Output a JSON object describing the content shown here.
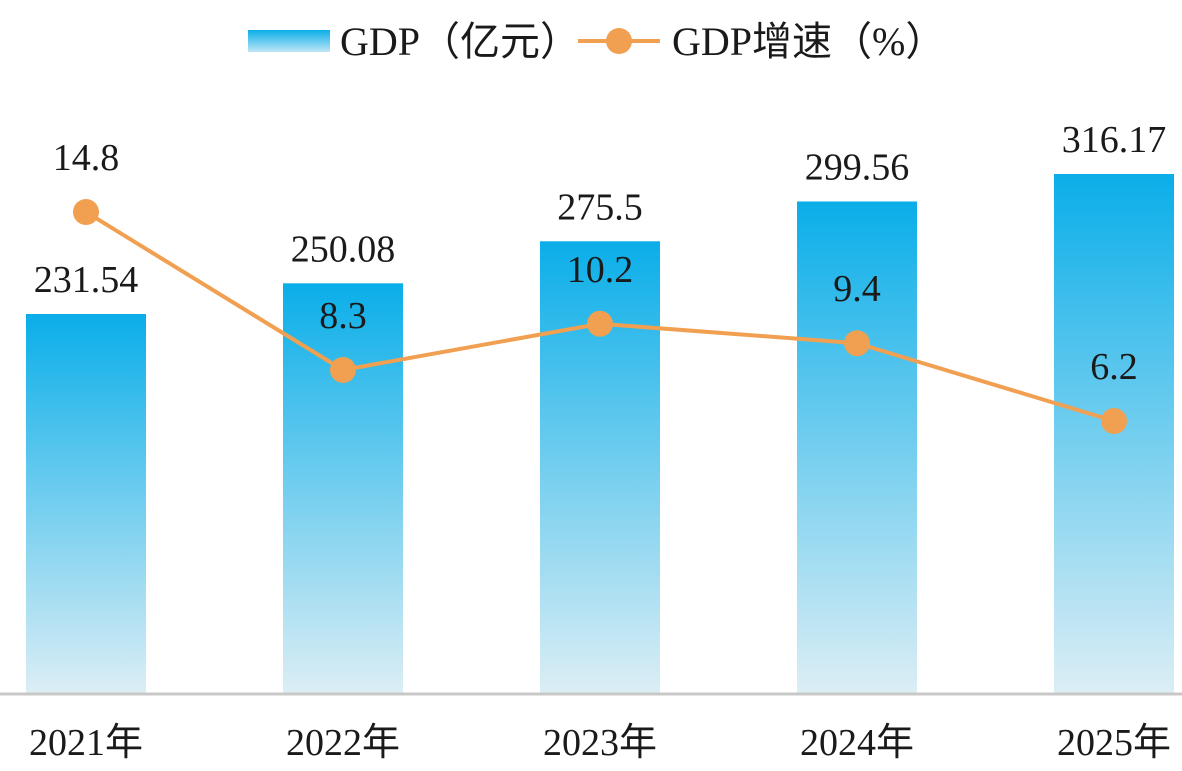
{
  "chart_data": {
    "type": "bar",
    "categories": [
      "2021年",
      "2022年",
      "2023年",
      "2024年",
      "2025年"
    ],
    "series": [
      {
        "name": "GDP（亿元）",
        "type": "bar",
        "axis": "left",
        "values": [
          231.54,
          250.08,
          275.5,
          299.56,
          316.17
        ],
        "labels": [
          "231.54",
          "250.08",
          "275.5",
          "299.56",
          "316.17"
        ],
        "color_top": "#0aaee9",
        "color_bottom": "#dceef5"
      },
      {
        "name": "GDP增速（%）",
        "type": "line",
        "axis": "right",
        "values": [
          14.8,
          8.3,
          10.2,
          9.4,
          6.2
        ],
        "labels": [
          "14.8",
          "8.3",
          "10.2",
          "9.4",
          "6.2"
        ],
        "color": "#f0a050"
      }
    ],
    "title": "",
    "xlabel": "",
    "ylabel": "",
    "legend_position": "top-center",
    "grid": false
  },
  "legend": {
    "bar_label": "GDP（亿元）",
    "line_label": "GDP增速（%）"
  }
}
